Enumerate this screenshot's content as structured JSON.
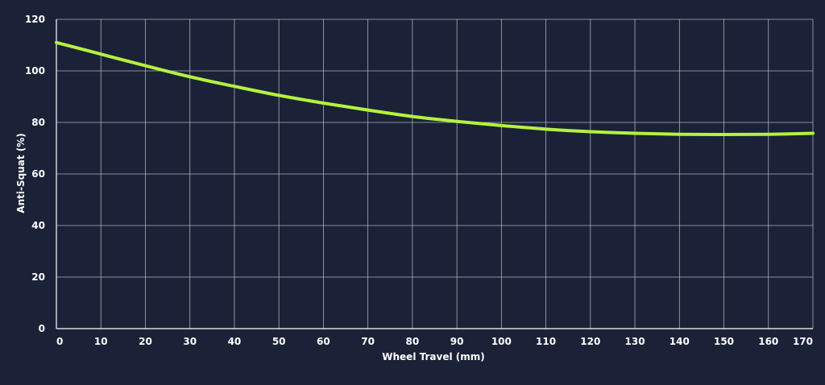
{
  "chart_data": {
    "type": "line",
    "title": "",
    "xlabel": "Wheel Travel (mm)",
    "ylabel": "Anti-Squat (%)",
    "xlim": [
      0,
      170
    ],
    "ylim": [
      0,
      120
    ],
    "x_ticks": [
      0,
      10,
      20,
      30,
      40,
      50,
      60,
      70,
      80,
      90,
      100,
      110,
      120,
      130,
      140,
      150,
      160,
      170
    ],
    "y_ticks": [
      0,
      20,
      40,
      60,
      80,
      100,
      120
    ],
    "grid": true,
    "legend": "none",
    "series": [
      {
        "color": "#b5f23c",
        "x": [
          0,
          10,
          20,
          30,
          40,
          50,
          60,
          70,
          80,
          90,
          100,
          110,
          120,
          130,
          140,
          150,
          160,
          170
        ],
        "y": [
          111,
          106.5,
          102,
          97.7,
          94,
          90.5,
          87.5,
          84.8,
          82.3,
          80.4,
          78.8,
          77.4,
          76.4,
          75.8,
          75.4,
          75.3,
          75.4,
          75.8
        ]
      }
    ]
  },
  "colors": {
    "background": "#1b2238",
    "grid": "#d8dbe2",
    "text": "#ffffff"
  }
}
